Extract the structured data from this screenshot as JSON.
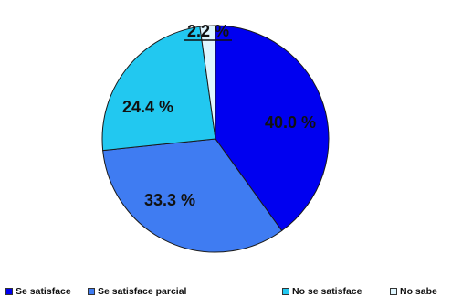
{
  "chart_data": {
    "type": "pie",
    "categories": [
      "Se satisface",
      "Se satisface parcial",
      "No se satisface",
      "No sabe"
    ],
    "values": [
      40.0,
      33.3,
      24.4,
      2.2
    ],
    "data_labels": [
      "40.0 %",
      "33.3 %",
      "24.4 %",
      "2.2 %"
    ],
    "colors": [
      "#0000f0",
      "#3f7cf2",
      "#22c8f0",
      "#dff6ff"
    ],
    "legend_position": "bottom",
    "start_angle_deg": 0,
    "direction": "clockwise"
  }
}
